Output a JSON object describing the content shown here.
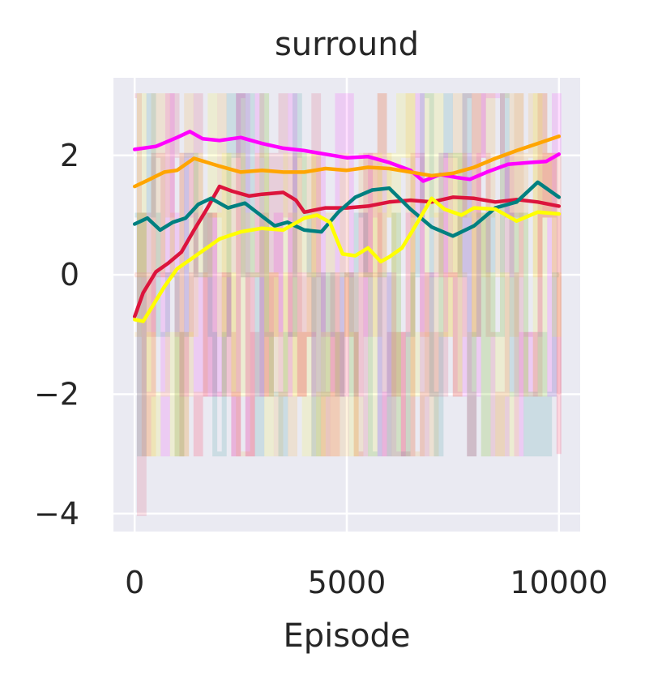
{
  "chart_data": {
    "type": "line",
    "title": "surround",
    "xlabel": "Episode",
    "ylabel": "",
    "xlim": [
      -500,
      10500
    ],
    "ylim": [
      -4.3,
      3.3
    ],
    "xticks": [
      0,
      5000,
      10000
    ],
    "xtick_labels": [
      "0",
      "5000",
      "10000"
    ],
    "yticks": [
      -4,
      -2,
      0,
      2
    ],
    "ytick_labels": [
      "−4",
      "−2",
      "0",
      "2"
    ],
    "grid": true,
    "background": "#eaeaf2",
    "raw_range": {
      "min": -3,
      "max": 3,
      "outlier_min": -4
    },
    "series": [
      {
        "color": "#ff00ff",
        "x": [
          0,
          500,
          1000,
          1300,
          1600,
          2000,
          2500,
          3000,
          3500,
          4000,
          4500,
          5000,
          5500,
          6000,
          6500,
          6800,
          7200,
          7600,
          7900,
          8300,
          8800,
          9300,
          9700,
          10000
        ],
        "y": [
          2.1,
          2.15,
          2.3,
          2.4,
          2.28,
          2.25,
          2.3,
          2.2,
          2.12,
          2.08,
          2.02,
          1.96,
          1.98,
          1.88,
          1.75,
          1.57,
          1.68,
          1.63,
          1.6,
          1.72,
          1.85,
          1.88,
          1.9,
          2.02
        ]
      },
      {
        "color": "#ffa500",
        "x": [
          0,
          300,
          700,
          1000,
          1400,
          2000,
          2500,
          3000,
          3500,
          4000,
          4500,
          5000,
          5500,
          6000,
          6500,
          7000,
          7500,
          8000,
          8500,
          9000,
          9500,
          10000
        ],
        "y": [
          1.48,
          1.58,
          1.72,
          1.75,
          1.95,
          1.82,
          1.72,
          1.75,
          1.72,
          1.72,
          1.78,
          1.75,
          1.8,
          1.78,
          1.72,
          1.66,
          1.7,
          1.8,
          1.95,
          2.08,
          2.2,
          2.32
        ]
      },
      {
        "color": "#dc143c",
        "x": [
          0,
          200,
          500,
          800,
          1100,
          1400,
          1700,
          2000,
          2300,
          2700,
          3000,
          3500,
          3800,
          4000,
          4500,
          5000,
          5500,
          6000,
          6500,
          7000,
          7500,
          8000,
          8500,
          9000,
          9500,
          10000
        ],
        "y": [
          -0.7,
          -0.3,
          0.05,
          0.2,
          0.38,
          0.75,
          1.1,
          1.48,
          1.4,
          1.32,
          1.35,
          1.38,
          1.25,
          1.05,
          1.12,
          1.12,
          1.15,
          1.22,
          1.25,
          1.22,
          1.3,
          1.28,
          1.22,
          1.26,
          1.22,
          1.15
        ]
      },
      {
        "color": "#008080",
        "x": [
          0,
          300,
          600,
          900,
          1200,
          1500,
          1800,
          2200,
          2600,
          3000,
          3300,
          3600,
          4000,
          4400,
          4800,
          5200,
          5600,
          6000,
          6500,
          7000,
          7500,
          8000,
          8500,
          9000,
          9500,
          10000
        ],
        "y": [
          0.85,
          0.95,
          0.75,
          0.88,
          0.95,
          1.18,
          1.28,
          1.12,
          1.2,
          0.98,
          0.82,
          0.88,
          0.75,
          0.72,
          1.05,
          1.3,
          1.42,
          1.45,
          1.1,
          0.8,
          0.65,
          0.82,
          1.12,
          1.22,
          1.55,
          1.3
        ]
      },
      {
        "color": "#ffff00",
        "x": [
          0,
          200,
          400,
          700,
          1000,
          1300,
          1600,
          2000,
          2500,
          3000,
          3500,
          4000,
          4300,
          4600,
          4900,
          5200,
          5500,
          5800,
          6000,
          6300,
          6600,
          7000,
          7300,
          7700,
          8000,
          8500,
          9000,
          9500,
          10000
        ],
        "y": [
          -0.75,
          -0.78,
          -0.55,
          -0.2,
          0.1,
          0.25,
          0.4,
          0.6,
          0.72,
          0.78,
          0.75,
          0.95,
          1.0,
          0.88,
          0.35,
          0.32,
          0.45,
          0.22,
          0.3,
          0.45,
          0.8,
          1.28,
          1.1,
          1.0,
          1.12,
          1.1,
          0.9,
          1.05,
          1.02
        ]
      }
    ]
  }
}
